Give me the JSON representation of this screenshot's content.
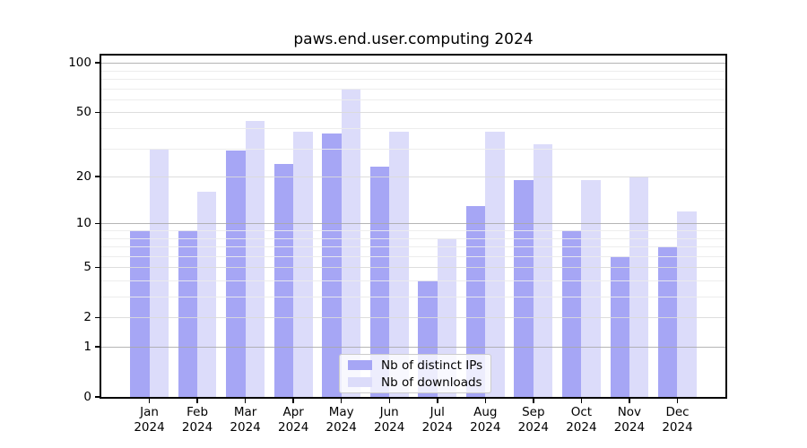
{
  "title": "paws.end.user.computing 2024",
  "x_axis": {
    "months": [
      "Jan",
      "Feb",
      "Mar",
      "Apr",
      "May",
      "Jun",
      "Jul",
      "Aug",
      "Sep",
      "Oct",
      "Nov",
      "Dec"
    ],
    "year": "2024"
  },
  "y_axis": {
    "ticks": [
      0,
      1,
      2,
      5,
      10,
      20,
      50,
      100
    ]
  },
  "chart_data": {
    "type": "bar",
    "title": "paws.end.user.computing 2024",
    "categories": [
      "Jan 2024",
      "Feb 2024",
      "Mar 2024",
      "Apr 2024",
      "May 2024",
      "Jun 2024",
      "Jul 2024",
      "Aug 2024",
      "Sep 2024",
      "Oct 2024",
      "Nov 2024",
      "Dec 2024"
    ],
    "series": [
      {
        "name": "Nb of distinct IPs",
        "color": "#a6a6f5",
        "values": [
          9,
          9,
          29,
          24,
          37,
          23,
          4,
          13,
          19,
          9,
          6,
          7
        ]
      },
      {
        "name": "Nb of downloads",
        "color": "#dcdcfa",
        "values": [
          30,
          16,
          44,
          38,
          70,
          38,
          8,
          38,
          32,
          19,
          20,
          12
        ]
      }
    ],
    "xlabel": "",
    "ylabel": "",
    "yscale": "log1p",
    "ylim": [
      0,
      110
    ],
    "yticks": [
      0,
      1,
      2,
      5,
      10,
      20,
      50,
      100
    ],
    "decade_gridlines": [
      1,
      10,
      100
    ],
    "minor_gridlines": [
      3,
      4,
      6,
      7,
      8,
      9,
      30,
      40,
      60,
      70,
      80,
      90
    ],
    "grid": true,
    "legend_position": "lower center"
  }
}
